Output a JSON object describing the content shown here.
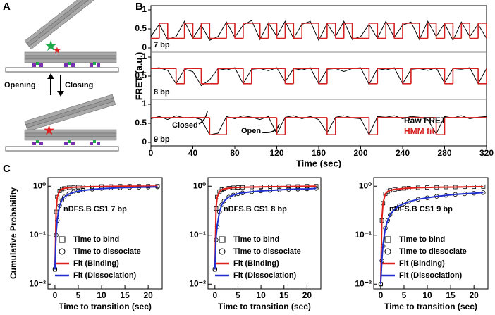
{
  "panel_labels": [
    "A",
    "B",
    "C"
  ],
  "diagram": {
    "left_label": "Opening",
    "right_label": "Closing"
  },
  "chart_data": [
    {
      "type": "trace",
      "xlabel": "Time (sec)",
      "ylabel": "FRET (a.u.)",
      "xlim": [
        0,
        320
      ],
      "xticks": [
        0,
        40,
        80,
        120,
        160,
        200,
        240,
        280,
        320
      ],
      "x": [
        0,
        8,
        16,
        24,
        32,
        40,
        48,
        56,
        64,
        72,
        80,
        88,
        96,
        104,
        112,
        120,
        128,
        136,
        144,
        152,
        160,
        168,
        176,
        184,
        192,
        200,
        208,
        216,
        224,
        232,
        240,
        248,
        256,
        264,
        272,
        280,
        288,
        296,
        304,
        312,
        320
      ],
      "panels": [
        {
          "label": "7 bp",
          "ylim": [
            0,
            1
          ],
          "yticks": [
            0,
            0.5,
            1
          ],
          "series": [
            {
              "color": "#000000",
              "values": [
                0.3,
                0.62,
                0.22,
                0.3,
                0.7,
                0.25,
                0.6,
                0.2,
                0.3,
                0.68,
                0.28,
                0.6,
                0.72,
                0.22,
                0.66,
                0.3,
                0.7,
                0.25,
                0.62,
                0.7,
                0.2,
                0.64,
                0.3,
                0.7,
                0.22,
                0.3,
                0.62,
                0.25,
                0.7,
                0.28,
                0.6,
                0.68,
                0.22,
                0.7,
                0.3,
                0.64,
                0.2,
                0.68,
                0.3,
                0.62,
                0.25
              ]
            },
            {
              "color": "#d42020",
              "values": [
                0.25,
                0.65,
                0.25,
                0.25,
                0.65,
                0.25,
                0.65,
                0.25,
                0.25,
                0.65,
                0.25,
                0.65,
                0.65,
                0.25,
                0.65,
                0.25,
                0.65,
                0.25,
                0.65,
                0.65,
                0.25,
                0.65,
                0.25,
                0.65,
                0.25,
                0.25,
                0.65,
                0.25,
                0.65,
                0.25,
                0.65,
                0.65,
                0.25,
                0.65,
                0.25,
                0.65,
                0.25,
                0.65,
                0.25,
                0.65,
                0.25
              ]
            }
          ]
        },
        {
          "label": "8 bp",
          "ylim": [
            0,
            1
          ],
          "yticks": [
            0.5,
            1
          ],
          "series": [
            {
              "color": "#000000",
              "values": [
                0.7,
                0.72,
                0.65,
                0.3,
                0.68,
                0.62,
                0.25,
                0.4,
                0.7,
                0.66,
                0.72,
                0.3,
                0.68,
                0.7,
                0.64,
                0.72,
                0.35,
                0.7,
                0.66,
                0.72,
                0.3,
                0.68,
                0.7,
                0.62,
                0.7,
                0.72,
                0.28,
                0.7,
                0.66,
                0.72,
                0.3,
                0.68,
                0.7,
                0.65,
                0.72,
                0.32,
                0.7,
                0.68,
                0.72,
                0.3,
                0.7
              ]
            },
            {
              "color": "#d42020",
              "values": [
                0.7,
                0.7,
                0.7,
                0.3,
                0.7,
                0.7,
                0.3,
                0.3,
                0.7,
                0.7,
                0.7,
                0.3,
                0.7,
                0.7,
                0.7,
                0.7,
                0.3,
                0.7,
                0.7,
                0.7,
                0.3,
                0.7,
                0.7,
                0.7,
                0.7,
                0.7,
                0.3,
                0.7,
                0.7,
                0.7,
                0.3,
                0.7,
                0.7,
                0.7,
                0.7,
                0.3,
                0.7,
                0.7,
                0.7,
                0.3,
                0.7
              ]
            }
          ]
        },
        {
          "label": "9 bp",
          "ylim": [
            0,
            1
          ],
          "yticks": [
            0,
            0.5,
            1
          ],
          "series": [
            {
              "name": "Raw FRET",
              "color": "#000000",
              "values": [
                0.62,
                0.68,
                0.6,
                0.7,
                0.64,
                0.66,
                0.6,
                0.2,
                0.24,
                0.68,
                0.62,
                0.7,
                0.66,
                0.6,
                0.68,
                0.22,
                0.66,
                0.7,
                0.62,
                0.68,
                0.6,
                0.25,
                0.66,
                0.7,
                0.64,
                0.62,
                0.2,
                0.68,
                0.66,
                0.7,
                0.62,
                0.68,
                0.66,
                0.6,
                0.22,
                0.68,
                0.64,
                0.7,
                0.62,
                0.66,
                0.68
              ]
            },
            {
              "name": "HMM fit",
              "color": "#d42020",
              "values": [
                0.65,
                0.65,
                0.65,
                0.65,
                0.65,
                0.65,
                0.65,
                0.2,
                0.2,
                0.65,
                0.65,
                0.65,
                0.65,
                0.65,
                0.65,
                0.2,
                0.65,
                0.65,
                0.65,
                0.65,
                0.65,
                0.2,
                0.65,
                0.65,
                0.65,
                0.65,
                0.2,
                0.65,
                0.65,
                0.65,
                0.65,
                0.65,
                0.65,
                0.65,
                0.2,
                0.65,
                0.65,
                0.65,
                0.65,
                0.65,
                0.65
              ]
            }
          ]
        }
      ],
      "annotations": [
        "Closed",
        "Open"
      ]
    },
    {
      "type": "cdf",
      "title": "nDFS.B CS1 7 bp",
      "xlabel": "Time to transition (sec)",
      "ylabel": "Cumulative Probability",
      "log": true,
      "xlim": [
        -1.5,
        23
      ],
      "xticks": [
        0,
        5,
        10,
        15,
        20
      ],
      "ylim": [
        0.008,
        1.5
      ],
      "yticks": [
        {
          "value": 0.01,
          "label": "10⁻²"
        },
        {
          "value": 0.1,
          "label": "10⁻¹"
        },
        {
          "value": 1,
          "label": "10⁰"
        }
      ],
      "x": [
        0,
        0.25,
        0.5,
        1,
        1.5,
        2,
        3,
        4,
        5,
        6,
        8,
        10,
        12,
        14,
        16,
        18,
        20,
        22
      ],
      "series": [
        {
          "name": "Time to bind",
          "marker": "square",
          "color": "#000000",
          "values": [
            0.02,
            0.3,
            0.6,
            0.8,
            0.87,
            0.9,
            0.93,
            0.95,
            0.96,
            0.97,
            0.98,
            0.99,
            0.99,
            1,
            1,
            1,
            1,
            1
          ]
        },
        {
          "name": "Time to dissociate",
          "marker": "circle",
          "color": "#000000",
          "values": [
            0.02,
            0.1,
            0.2,
            0.4,
            0.52,
            0.6,
            0.7,
            0.76,
            0.8,
            0.83,
            0.87,
            0.9,
            0.92,
            0.93,
            0.94,
            0.95,
            0.96,
            0.97
          ]
        },
        {
          "name": "Fit (Binding)",
          "marker": "line",
          "color": "#e0201b",
          "values": [
            0.02,
            0.32,
            0.6,
            0.81,
            0.87,
            0.9,
            0.93,
            0.95,
            0.96,
            0.97,
            0.98,
            0.985,
            0.99,
            0.995,
            1,
            1,
            1,
            1
          ]
        },
        {
          "name": "Fit (Dissociation)",
          "marker": "line",
          "color": "#1f2fd0",
          "values": [
            0.02,
            0.11,
            0.21,
            0.4,
            0.52,
            0.6,
            0.69,
            0.75,
            0.79,
            0.82,
            0.86,
            0.89,
            0.91,
            0.93,
            0.94,
            0.95,
            0.96,
            0.97
          ]
        }
      ]
    },
    {
      "type": "cdf",
      "title": "nDFS.B CS1 8 bp",
      "xlabel": "Time to transition (sec)",
      "log": true,
      "xlim": [
        -1.5,
        23
      ],
      "xticks": [
        0,
        5,
        10,
        15,
        20
      ],
      "ylim": [
        0.008,
        1.5
      ],
      "yticks": [
        {
          "value": 0.01,
          "label": "10⁻²"
        },
        {
          "value": 0.1,
          "label": "10⁻¹"
        },
        {
          "value": 1,
          "label": "10⁰"
        }
      ],
      "x": [
        0,
        0.25,
        0.5,
        1,
        1.5,
        2,
        3,
        4,
        5,
        6,
        8,
        10,
        12,
        14,
        16,
        18,
        20,
        22
      ],
      "series": [
        {
          "name": "Time to bind",
          "marker": "square",
          "color": "#000000",
          "values": [
            0.02,
            0.35,
            0.6,
            0.78,
            0.85,
            0.88,
            0.91,
            0.93,
            0.94,
            0.95,
            0.96,
            0.97,
            0.98,
            0.98,
            0.99,
            0.99,
            1,
            1
          ]
        },
        {
          "name": "Time to dissociate",
          "marker": "circle",
          "color": "#000000",
          "values": [
            0.02,
            0.08,
            0.15,
            0.3,
            0.42,
            0.5,
            0.6,
            0.66,
            0.7,
            0.73,
            0.77,
            0.8,
            0.82,
            0.84,
            0.86,
            0.87,
            0.88,
            0.9
          ]
        },
        {
          "name": "Fit (Binding)",
          "marker": "line",
          "color": "#e0201b",
          "values": [
            0.02,
            0.36,
            0.6,
            0.78,
            0.85,
            0.88,
            0.91,
            0.93,
            0.94,
            0.95,
            0.96,
            0.97,
            0.975,
            0.98,
            0.985,
            0.99,
            0.995,
            1
          ]
        },
        {
          "name": "Fit (Dissociation)",
          "marker": "line",
          "color": "#1f2fd0",
          "values": [
            0.02,
            0.09,
            0.16,
            0.3,
            0.42,
            0.5,
            0.6,
            0.66,
            0.7,
            0.73,
            0.77,
            0.8,
            0.82,
            0.84,
            0.86,
            0.87,
            0.88,
            0.9
          ]
        }
      ]
    },
    {
      "type": "cdf",
      "title": "nDFS.B CS1 9 bp",
      "xlabel": "Time to transition (sec)",
      "log": true,
      "xlim": [
        -1.5,
        23
      ],
      "xticks": [
        0,
        5,
        10,
        15,
        20
      ],
      "ylim": [
        0.008,
        1.5
      ],
      "yticks": [
        {
          "value": 0.01,
          "label": "10⁻²"
        },
        {
          "value": 0.1,
          "label": "10⁻¹"
        },
        {
          "value": 1,
          "label": "10⁰"
        }
      ],
      "x": [
        0,
        0.25,
        0.5,
        1,
        1.5,
        2,
        3,
        4,
        5,
        6,
        8,
        10,
        12,
        14,
        16,
        18,
        20,
        22
      ],
      "series": [
        {
          "name": "Time to bind",
          "marker": "square",
          "color": "#000000",
          "values": [
            0.01,
            0.2,
            0.45,
            0.7,
            0.78,
            0.82,
            0.86,
            0.88,
            0.9,
            0.91,
            0.93,
            0.94,
            0.95,
            0.96,
            0.96,
            0.97,
            0.97,
            0.98
          ]
        },
        {
          "name": "Time to dissociate",
          "marker": "circle",
          "color": "#000000",
          "values": [
            0.01,
            0.03,
            0.06,
            0.14,
            0.2,
            0.26,
            0.34,
            0.4,
            0.44,
            0.48,
            0.54,
            0.58,
            0.62,
            0.65,
            0.68,
            0.7,
            0.72,
            0.74
          ]
        },
        {
          "name": "Fit (Binding)",
          "marker": "line",
          "color": "#e0201b",
          "values": [
            0.01,
            0.21,
            0.45,
            0.7,
            0.78,
            0.82,
            0.86,
            0.88,
            0.9,
            0.91,
            0.93,
            0.94,
            0.95,
            0.955,
            0.96,
            0.97,
            0.975,
            0.98
          ]
        },
        {
          "name": "Fit (Dissociation)",
          "marker": "line",
          "color": "#1f2fd0",
          "values": [
            0.01,
            0.03,
            0.065,
            0.14,
            0.2,
            0.26,
            0.34,
            0.4,
            0.44,
            0.48,
            0.54,
            0.58,
            0.62,
            0.65,
            0.68,
            0.7,
            0.72,
            0.74
          ]
        }
      ]
    }
  ]
}
